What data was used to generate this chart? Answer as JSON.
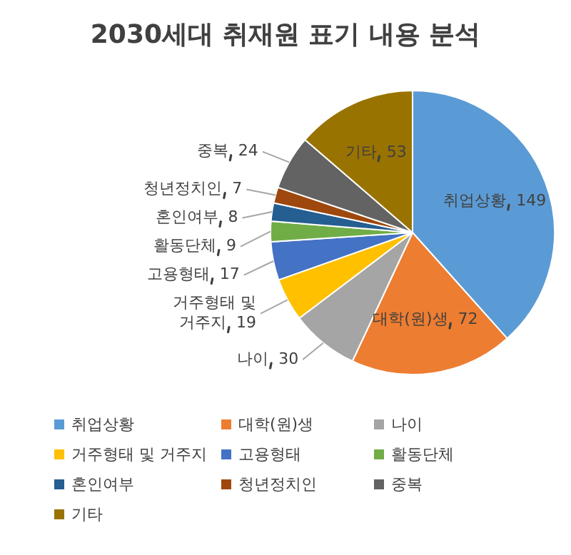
{
  "chart_data": {
    "type": "pie",
    "title": "2030세대 취재원 표기 내용 분석",
    "categories": [
      "취업상황",
      "대학(원)생",
      "나이",
      "거주형태 및 거주지",
      "고용형태",
      "활동단체",
      "혼인여부",
      "청년정치인",
      "중복",
      "기타"
    ],
    "values": [
      149,
      72,
      30,
      19,
      17,
      9,
      8,
      7,
      24,
      53
    ],
    "colors": [
      "#5b9bd5",
      "#ed7d31",
      "#a5a5a5",
      "#ffc000",
      "#4472c4",
      "#70ad47",
      "#255e91",
      "#9e480e",
      "#636363",
      "#997300"
    ],
    "data_labels": true,
    "legend": "bottom"
  }
}
